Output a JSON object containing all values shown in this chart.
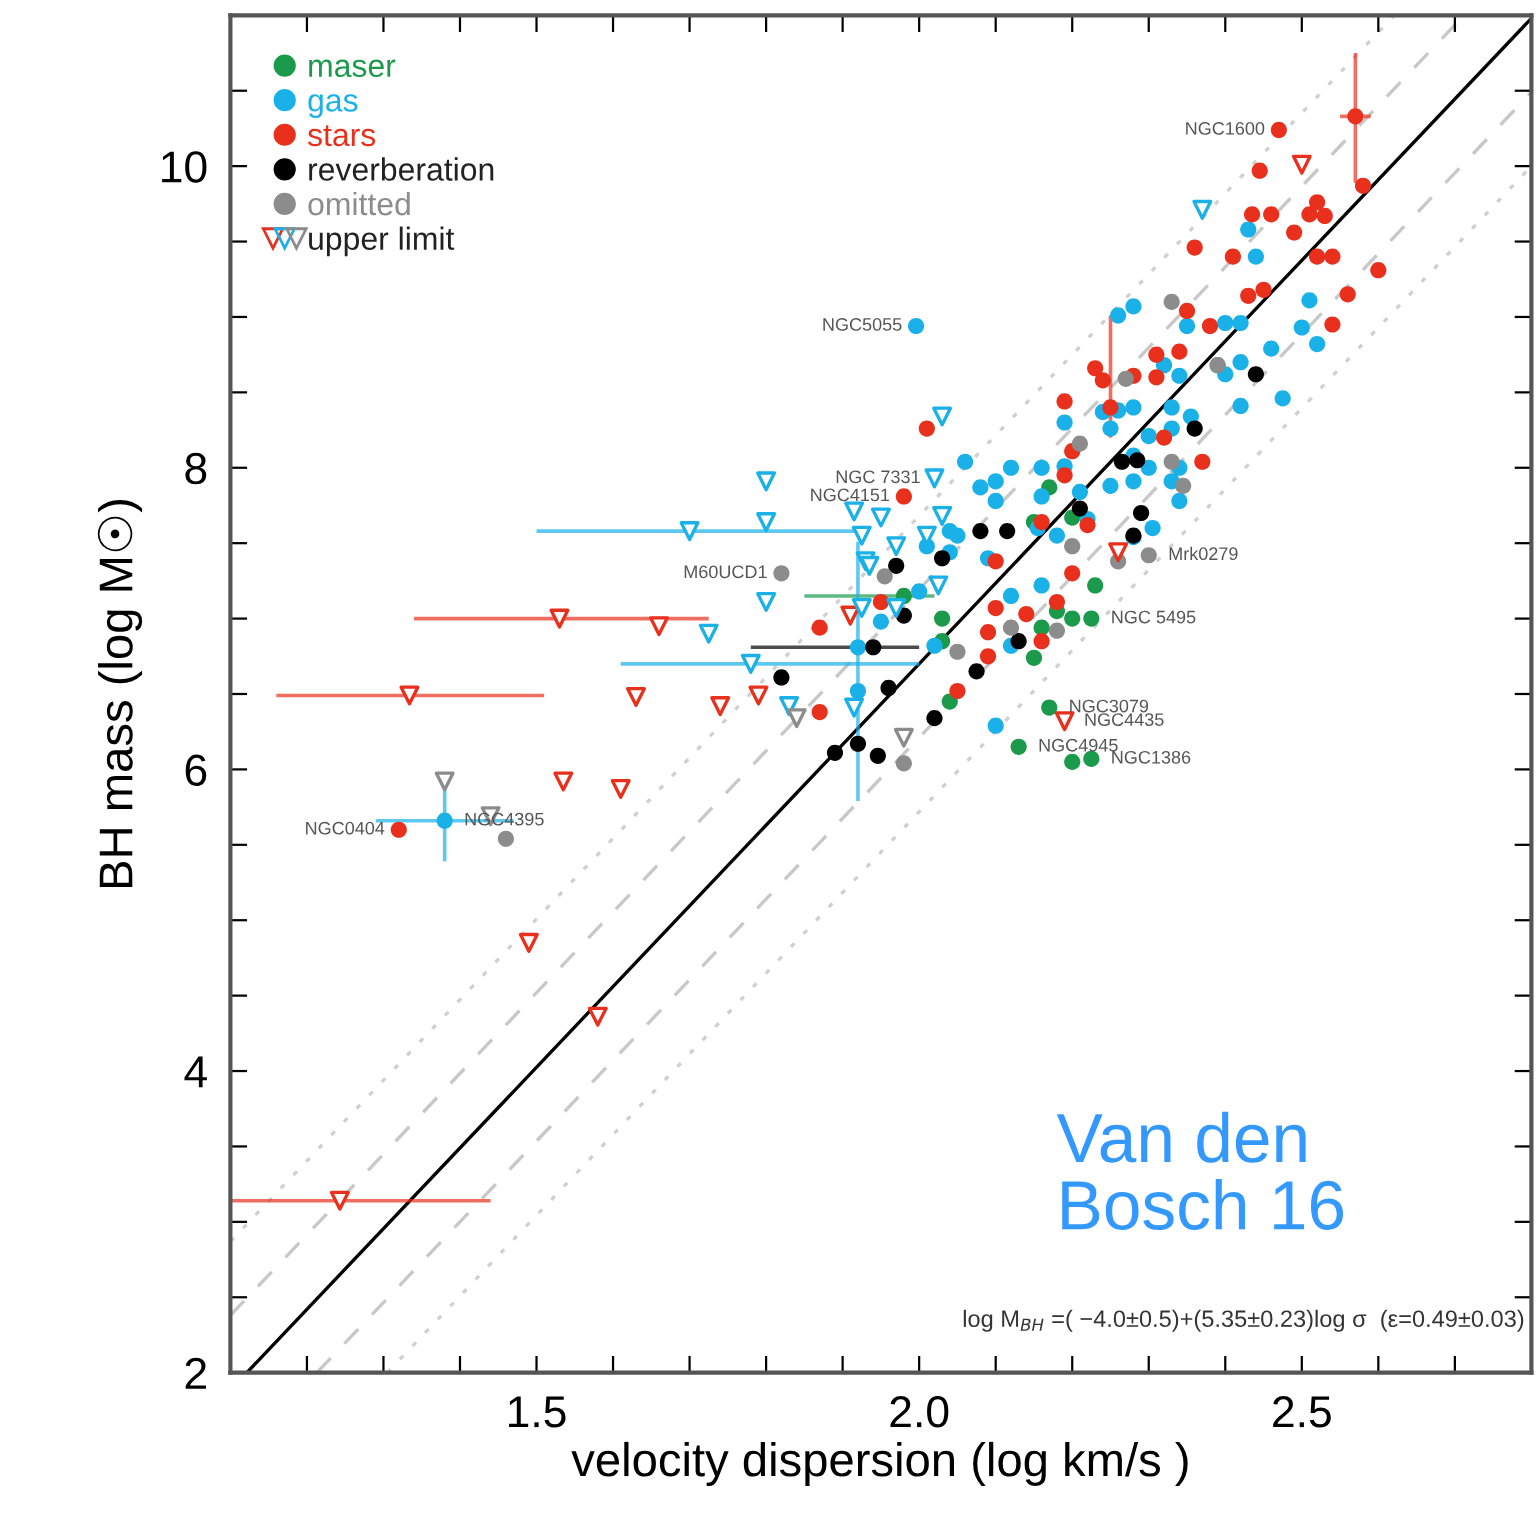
{
  "chart_data": {
    "type": "scatter",
    "xlabel": "velocity dispersion (log km/s )",
    "ylabel": "BH mass (log M☉)",
    "xlim": [
      1.1,
      2.8
    ],
    "ylim": [
      2,
      11
    ],
    "xticks": [
      {
        "value": 1.2,
        "label": null
      },
      {
        "value": 1.3,
        "label": null
      },
      {
        "value": 1.4,
        "label": null
      },
      1.5,
      {
        "value": 1.6,
        "label": null
      },
      {
        "value": 1.7,
        "label": null
      },
      {
        "value": 1.8,
        "label": null
      },
      {
        "value": 1.9,
        "label": null
      },
      {
        "value": 2.0,
        "label": "2.0"
      },
      {
        "value": 2.1,
        "label": null
      },
      {
        "value": 2.2,
        "label": null
      },
      {
        "value": 2.3,
        "label": null
      },
      {
        "value": 2.4,
        "label": null
      },
      2.5,
      {
        "value": 2.6,
        "label": null
      },
      {
        "value": 2.7,
        "label": null
      }
    ],
    "yticks": [
      2,
      {
        "value": 2.5,
        "label": null
      },
      {
        "value": 3,
        "label": null
      },
      {
        "value": 3.5,
        "label": null
      },
      4,
      {
        "value": 4.5,
        "label": null
      },
      {
        "value": 5,
        "label": null
      },
      {
        "value": 5.5,
        "label": null
      },
      6,
      {
        "value": 6.5,
        "label": null
      },
      {
        "value": 7,
        "label": null
      },
      {
        "value": 7.5,
        "label": null
      },
      8,
      {
        "value": 8.5,
        "label": null
      },
      {
        "value": 9,
        "label": null
      },
      {
        "value": 9.5,
        "label": null
      },
      10,
      {
        "value": 10.5,
        "label": null
      }
    ],
    "grid": false,
    "legend": "top left",
    "marker": "circle",
    "series": [
      {
        "type": "line",
        "color": "#000000",
        "line_style": "solid",
        "marker": "none",
        "x": [
          1.1215,
          2.8
        ],
        "values": [
          2,
          10.98
        ]
      },
      {
        "type": "line",
        "color": "#c8c8c8",
        "line_style": "dashed",
        "marker": "none",
        "x": [
          1.1,
          2.712
        ],
        "values": [
          2.38,
          11
        ]
      },
      {
        "type": "line",
        "color": "#c8c8c8",
        "line_style": "dashed",
        "marker": "none",
        "x": [
          1.213,
          2.8
        ],
        "values": [
          2,
          10.49
        ]
      },
      {
        "type": "line",
        "color": "#d0d0d0",
        "line_style": "dotted",
        "marker": "none",
        "x": [
          1.1,
          2.621
        ],
        "values": [
          2.87,
          11
        ]
      },
      {
        "type": "line",
        "color": "#d0d0d0",
        "line_style": "dotted",
        "marker": "none",
        "x": [
          1.305,
          2.8
        ],
        "values": [
          2,
          10.0
        ]
      },
      {
        "name": "maser",
        "color": "#1a9a4a",
        "x": [
          2.03,
          2.03,
          2.18,
          2.2,
          2.225,
          2.16,
          2.15,
          2.04,
          2.17,
          2.13,
          2.2,
          2.225,
          2.23,
          2.15,
          2.17,
          2.2
        ],
        "values": [
          7.0,
          6.85,
          7.05,
          7.0,
          7.0,
          6.94,
          6.74,
          6.45,
          6.41,
          6.15,
          6.05,
          6.07,
          7.22,
          7.64,
          7.87,
          7.67
        ]
      },
      {
        "color": "#1a9a4a",
        "x": [
          1.98
        ],
        "values": [
          7.15
        ],
        "xerrors": [
          [
            1.85,
            2.02
          ]
        ]
      },
      {
        "name": "gas",
        "color": "#1ab0e8",
        "x": [
          1.996,
          2.26,
          2.28,
          2.43,
          2.44,
          2.51,
          2.5,
          2.52,
          2.46,
          2.42,
          2.35,
          2.4,
          2.39,
          2.42,
          2.32,
          2.34,
          2.42,
          2.475,
          2.4,
          2.355,
          2.33,
          2.33,
          2.3,
          2.28,
          2.26,
          2.24,
          2.25,
          2.28,
          2.3,
          2.34,
          2.33,
          2.28,
          2.25,
          2.19,
          2.19,
          2.16,
          2.12,
          2.1,
          2.1,
          2.06,
          2.05,
          2.16,
          2.21,
          2.155,
          2.18,
          2.28,
          2.305,
          2.34,
          2.0,
          2.01,
          2.04,
          2.09,
          2.02,
          2.04,
          2.12,
          2.12,
          2.1,
          2.22,
          2.08,
          1.95,
          2.16,
          1.92
        ],
        "values": [
          8.94,
          9.01,
          9.07,
          9.58,
          9.4,
          9.11,
          8.93,
          8.82,
          8.79,
          8.96,
          8.94,
          8.96,
          8.68,
          8.7,
          8.68,
          8.61,
          8.41,
          8.46,
          8.62,
          8.34,
          8.4,
          8.26,
          8.21,
          8.4,
          8.38,
          8.37,
          8.26,
          8.08,
          8.0,
          8.0,
          7.91,
          7.91,
          7.88,
          8.3,
          8.01,
          8.0,
          8.0,
          7.91,
          7.78,
          8.04,
          7.55,
          7.81,
          7.84,
          7.6,
          7.55,
          7.54,
          7.6,
          7.78,
          7.18,
          7.48,
          7.44,
          7.4,
          6.82,
          7.58,
          7.15,
          6.82,
          6.29,
          7.66,
          7.87,
          6.98,
          7.22,
          6.81
        ]
      },
      {
        "color": "#1ab0e8",
        "x": [
          1.92,
          1.38
        ],
        "values": [
          6.52,
          5.66
        ],
        "errors": [
          [
            5.79,
            7.51
          ],
          [
            5.39,
            5.95
          ]
        ],
        "xerrors": [
          null,
          [
            1.29,
            1.47
          ]
        ]
      },
      {
        "name": "stars",
        "color": "#e8301c",
        "x": [
          2.47,
          2.58,
          2.445,
          2.435,
          2.46,
          2.49,
          2.51,
          2.52,
          2.53,
          2.36,
          2.41,
          2.52,
          2.54,
          2.6,
          2.56,
          2.43,
          2.45,
          2.54,
          2.35,
          2.38,
          2.31,
          2.34,
          2.23,
          2.24,
          2.28,
          2.31,
          2.19,
          2.37,
          2.32,
          2.2,
          2.01,
          2.19,
          2.22,
          2.2,
          1.98,
          2.09,
          2.18,
          1.87,
          1.87,
          2.05,
          2.1,
          2.09,
          2.14,
          2.16,
          1.95,
          1.32,
          2.16,
          2.1
        ],
        "values": [
          10.24,
          9.87,
          9.97,
          9.68,
          9.68,
          9.56,
          9.68,
          9.76,
          9.67,
          9.46,
          9.4,
          9.4,
          9.4,
          9.31,
          9.15,
          9.14,
          9.18,
          8.95,
          9.04,
          8.94,
          8.75,
          8.77,
          8.66,
          8.58,
          8.61,
          8.6,
          8.44,
          8.04,
          8.2,
          8.11,
          8.26,
          7.95,
          7.62,
          7.3,
          7.81,
          6.75,
          7.11,
          6.94,
          6.38,
          6.52,
          7.07,
          6.91,
          7.03,
          6.85,
          7.11,
          5.6,
          7.64,
          7.38
        ]
      },
      {
        "color": "#e8301c",
        "x": [
          2.57,
          2.25
        ],
        "values": [
          10.33,
          8.4
        ],
        "errors": [
          [
            9.89,
            10.75
          ],
          [
            8.2,
            9.01
          ]
        ],
        "xerrors": [
          [
            2.55,
            2.59
          ],
          null
        ]
      },
      {
        "name": "reverberation",
        "color": "#000000",
        "x": [
          2.44,
          2.36,
          2.265,
          2.285,
          2.21,
          2.29,
          2.28,
          2.115,
          2.08,
          2.03,
          1.97,
          1.82,
          1.89,
          1.92,
          1.946,
          1.98,
          1.96,
          2.02,
          2.075,
          2.13
        ],
        "values": [
          8.62,
          8.26,
          8.04,
          8.05,
          7.73,
          7.7,
          7.55,
          7.58,
          7.58,
          7.4,
          7.35,
          6.61,
          6.11,
          6.17,
          6.09,
          7.02,
          6.54,
          6.34,
          6.65,
          6.85
        ]
      },
      {
        "color": "#000000",
        "x": [
          1.94
        ],
        "values": [
          6.81
        ],
        "xerrors": [
          [
            1.78,
            2.0
          ]
        ]
      },
      {
        "name": "omitted",
        "color": "#8c8c8c",
        "x": [
          2.33,
          2.27,
          2.39,
          2.21,
          2.33,
          2.345,
          2.2,
          2.26,
          2.3,
          1.955,
          1.82,
          2.18,
          2.12,
          2.05,
          1.98,
          1.46
        ],
        "values": [
          9.1,
          8.59,
          8.68,
          8.16,
          8.04,
          7.88,
          7.48,
          7.38,
          7.42,
          7.28,
          7.3,
          6.92,
          6.94,
          6.78,
          6.04,
          5.54
        ]
      },
      {
        "name": "upper limit",
        "color": "#000000",
        "marker": "triangle",
        "x": [
          2.5,
          1.66,
          1.63,
          1.74,
          1.79,
          1.535,
          1.61,
          1.49,
          1.58,
          1.91,
          2.26,
          2.19,
          2.37,
          2.03,
          2.02,
          1.8,
          1.8,
          1.915,
          1.925,
          1.93,
          1.8,
          1.725,
          1.83,
          1.915,
          1.925,
          1.95,
          2.03,
          2.01,
          1.97,
          1.935,
          2.025,
          1.97,
          1.84,
          1.98,
          1.38,
          1.44
        ],
        "values": [
          10.01,
          6.95,
          6.48,
          6.42,
          6.49,
          5.92,
          5.87,
          4.85,
          4.36,
          7.02,
          7.44,
          6.32,
          9.71,
          8.34,
          7.93,
          7.91,
          7.64,
          7.71,
          7.55,
          7.38,
          7.11,
          6.9,
          6.42,
          6.41,
          7.07,
          7.67,
          7.68,
          7.55,
          7.48,
          7.35,
          7.22,
          7.07,
          6.34,
          6.21,
          5.92,
          5.69
        ],
        "colors": [
          "#e8301c",
          "#e8301c",
          "#e8301c",
          "#e8301c",
          "#e8301c",
          "#e8301c",
          "#e8301c",
          "#e8301c",
          "#e8301c",
          "#e8301c",
          "#e8301c",
          "#e8301c",
          "#1ab0e8",
          "#1ab0e8",
          "#1ab0e8",
          "#1ab0e8",
          "#1ab0e8",
          "#1ab0e8",
          "#1ab0e8",
          "#1ab0e8",
          "#1ab0e8",
          "#1ab0e8",
          "#1ab0e8",
          "#1ab0e8",
          "#1ab0e8",
          "#1ab0e8",
          "#1ab0e8",
          "#1ab0e8",
          "#1ab0e8",
          "#1ab0e8",
          "#1ab0e8",
          "#1ab0e8",
          "#8c8c8c",
          "#8c8c8c",
          "#8c8c8c",
          "#8c8c8c"
        ]
      },
      {
        "color": "#e8301c",
        "marker": "triangle",
        "x": [
          1.53,
          1.334,
          1.243
        ],
        "values": [
          7.0,
          6.49,
          3.14
        ],
        "xerrors": [
          [
            1.34,
            1.725
          ],
          [
            1.16,
            1.51
          ],
          [
            1.1,
            1.44
          ]
        ]
      },
      {
        "color": "#1ab0e8",
        "marker": "triangle",
        "x": [
          1.7,
          1.78
        ],
        "values": [
          7.58,
          6.7
        ],
        "xerrors": [
          [
            1.5,
            1.92
          ],
          [
            1.61,
            2.0
          ]
        ]
      }
    ],
    "annotations": [
      {
        "text": "NGC1600",
        "x": 2.47,
        "y": 10.24
      },
      {
        "text": "NGC5055",
        "x": 1.996,
        "y": 8.94
      },
      {
        "text": "NGC 7331",
        "x": 2.02,
        "y": 7.93
      },
      {
        "text": "NGC4151",
        "x": 1.98,
        "y": 7.81
      },
      {
        "text": "M60UCD1",
        "x": 1.82,
        "y": 7.3
      },
      {
        "text": "NGC0404",
        "x": 1.32,
        "y": 5.6
      },
      {
        "text": "NGC4395",
        "x": 1.38,
        "y": 5.66
      },
      {
        "text": "Mrk0279",
        "x": 2.3,
        "y": 7.42
      },
      {
        "text": "NGC 5495",
        "x": 2.225,
        "y": 7.0
      },
      {
        "text": "NGC3079",
        "x": 2.17,
        "y": 6.41
      },
      {
        "text": "NGC4435",
        "x": 2.19,
        "y": 6.32
      },
      {
        "text": "NGC4945",
        "x": 2.13,
        "y": 6.15
      },
      {
        "text": "NGC1386",
        "x": 2.225,
        "y": 6.07
      },
      "Van den Bosch 16",
      "log M$_{BH}$ =( −4.0±0.5)+(5.35±0.23)log σ  (ε=0.49±0.03)"
    ]
  }
}
